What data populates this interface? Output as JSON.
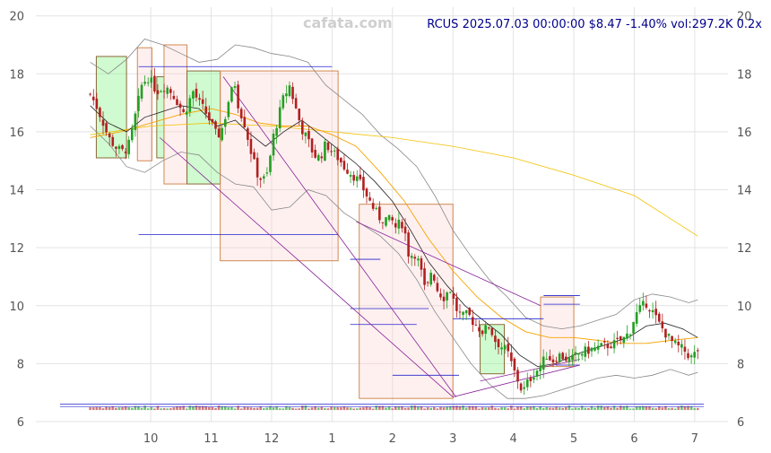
{
  "watermark": "cafata.com",
  "chart_data": {
    "type": "candlestick",
    "title": "RCUS 2025.07.03 00:00:00 $8.47 -1.40% vol:297.2K 0.2x",
    "ylim": [
      6,
      20.3
    ],
    "y_ticks": [
      6,
      8,
      10,
      12,
      14,
      16,
      18,
      20
    ],
    "x_ticks": [
      {
        "label": "10",
        "t": 1.0
      },
      {
        "label": "11",
        "t": 2.0
      },
      {
        "label": "12",
        "t": 3.0
      },
      {
        "label": "1",
        "t": 4.0
      },
      {
        "label": "2",
        "t": 5.0
      },
      {
        "label": "3",
        "t": 6.0
      },
      {
        "label": "4",
        "t": 7.0
      },
      {
        "label": "5",
        "t": 8.0
      },
      {
        "label": "6",
        "t": 9.0
      },
      {
        "label": "7",
        "t": 10.0
      }
    ],
    "xlim": [
      -0.9,
      10.55
    ],
    "close_path": [
      [
        0.0,
        17.3
      ],
      [
        0.1,
        16.9
      ],
      [
        0.2,
        16.4
      ],
      [
        0.3,
        15.8
      ],
      [
        0.45,
        15.4
      ],
      [
        0.55,
        15.3
      ],
      [
        0.65,
        15.6
      ],
      [
        0.75,
        16.6
      ],
      [
        0.85,
        17.6
      ],
      [
        0.95,
        17.9
      ],
      [
        1.1,
        17.4
      ],
      [
        1.25,
        17.6
      ],
      [
        1.4,
        17.2
      ],
      [
        1.55,
        16.6
      ],
      [
        1.7,
        17.4
      ],
      [
        1.8,
        17.0
      ],
      [
        1.9,
        16.7
      ],
      [
        2.0,
        16.3
      ],
      [
        2.1,
        15.8
      ],
      [
        2.2,
        16.2
      ],
      [
        2.3,
        17.2
      ],
      [
        2.4,
        17.7
      ],
      [
        2.45,
        16.9
      ],
      [
        2.55,
        16.3
      ],
      [
        2.65,
        15.4
      ],
      [
        2.75,
        14.6
      ],
      [
        2.85,
        14.3
      ],
      [
        2.95,
        14.6
      ],
      [
        3.0,
        15.6
      ],
      [
        3.1,
        16.4
      ],
      [
        3.2,
        17.2
      ],
      [
        3.3,
        17.6
      ],
      [
        3.4,
        16.8
      ],
      [
        3.5,
        16.1
      ],
      [
        3.6,
        15.7
      ],
      [
        3.7,
        15.2
      ],
      [
        3.8,
        15.1
      ],
      [
        3.9,
        15.6
      ],
      [
        4.0,
        15.3
      ],
      [
        4.1,
        15.1
      ],
      [
        4.2,
        14.8
      ],
      [
        4.3,
        14.6
      ],
      [
        4.4,
        14.4
      ],
      [
        4.5,
        14.1
      ],
      [
        4.6,
        13.7
      ],
      [
        4.7,
        13.3
      ],
      [
        4.8,
        13.0
      ],
      [
        4.9,
        13.0
      ],
      [
        5.0,
        12.9
      ],
      [
        5.05,
        12.7
      ],
      [
        5.15,
        12.9
      ],
      [
        5.22,
        12.4
      ],
      [
        5.28,
        11.6
      ],
      [
        5.35,
        11.9
      ],
      [
        5.45,
        11.4
      ],
      [
        5.55,
        10.4
      ],
      [
        5.65,
        11.3
      ],
      [
        5.75,
        10.5
      ],
      [
        5.85,
        10.3
      ],
      [
        5.95,
        10.6
      ],
      [
        6.05,
        9.9
      ],
      [
        6.15,
        9.6
      ],
      [
        6.25,
        9.7
      ],
      [
        6.35,
        9.4
      ],
      [
        6.5,
        9.1
      ],
      [
        6.6,
        9.3
      ],
      [
        6.7,
        8.8
      ],
      [
        6.8,
        8.6
      ],
      [
        6.9,
        8.4
      ],
      [
        7.0,
        7.8
      ],
      [
        7.1,
        7.3
      ],
      [
        7.15,
        7.0
      ],
      [
        7.25,
        7.4
      ],
      [
        7.35,
        7.7
      ],
      [
        7.45,
        7.9
      ],
      [
        7.55,
        8.3
      ],
      [
        7.65,
        8.1
      ],
      [
        7.75,
        8.3
      ],
      [
        7.85,
        8.2
      ],
      [
        7.95,
        8.1
      ],
      [
        8.05,
        8.3
      ],
      [
        8.15,
        8.4
      ],
      [
        8.3,
        8.5
      ],
      [
        8.5,
        8.6
      ],
      [
        8.7,
        8.7
      ],
      [
        8.85,
        8.9
      ],
      [
        8.95,
        9.2
      ],
      [
        9.0,
        9.6
      ],
      [
        9.1,
        9.9
      ],
      [
        9.2,
        10.1
      ],
      [
        9.3,
        9.8
      ],
      [
        9.4,
        9.4
      ],
      [
        9.5,
        9.1
      ],
      [
        9.6,
        8.8
      ],
      [
        9.7,
        8.6
      ],
      [
        9.8,
        8.5
      ],
      [
        9.9,
        8.3
      ],
      [
        9.95,
        8.2
      ],
      [
        10.05,
        8.47
      ]
    ],
    "boxes": [
      {
        "x0": 0.1,
        "x1": 0.6,
        "y0": 15.1,
        "y1": 18.6,
        "kind": "up"
      },
      {
        "x0": 0.78,
        "x1": 1.02,
        "y0": 15.0,
        "y1": 18.9,
        "kind": "down"
      },
      {
        "x0": 1.1,
        "x1": 1.22,
        "y0": 15.1,
        "y1": 17.9,
        "kind": "up"
      },
      {
        "x0": 1.22,
        "x1": 1.6,
        "y0": 14.2,
        "y1": 19.0,
        "kind": "down"
      },
      {
        "x0": 1.6,
        "x1": 2.15,
        "y0": 14.2,
        "y1": 18.1,
        "kind": "up"
      },
      {
        "x0": 2.15,
        "x1": 4.1,
        "y0": 11.55,
        "y1": 18.1,
        "kind": "down"
      },
      {
        "x0": 4.45,
        "x1": 6.0,
        "y0": 6.8,
        "y1": 13.5,
        "kind": "down"
      },
      {
        "x0": 6.45,
        "x1": 6.85,
        "y0": 7.65,
        "y1": 9.35,
        "kind": "up"
      },
      {
        "x0": 7.45,
        "x1": 8.0,
        "y0": 7.9,
        "y1": 10.3,
        "kind": "down"
      }
    ],
    "hlines": [
      {
        "x0": 0.8,
        "x1": 4.0,
        "y": 18.25
      },
      {
        "x0": 0.8,
        "x1": 4.1,
        "y": 12.45
      },
      {
        "x0": 4.3,
        "x1": 4.8,
        "y": 11.6
      },
      {
        "x0": 4.3,
        "x1": 5.6,
        "y": 9.9
      },
      {
        "x0": 4.3,
        "x1": 5.4,
        "y": 9.35
      },
      {
        "x0": 5.0,
        "x1": 6.1,
        "y": 7.6
      },
      {
        "x0": 6.0,
        "x1": 7.5,
        "y": 9.55
      },
      {
        "x0": 7.5,
        "x1": 8.1,
        "y": 10.35
      },
      {
        "x0": 7.5,
        "x1": 8.1,
        "y": 10.05
      },
      {
        "x0": 7.7,
        "x1": 8.1,
        "y": 7.95
      }
    ],
    "trend_lines": [
      {
        "x0": 2.2,
        "y0": 17.9,
        "x1": 6.05,
        "y1": 6.85
      },
      {
        "x0": 1.15,
        "y0": 15.8,
        "x1": 6.0,
        "y1": 6.85
      },
      {
        "x0": 4.4,
        "y0": 12.9,
        "x1": 7.45,
        "y1": 10.0
      },
      {
        "x0": 6.0,
        "y0": 6.85,
        "x1": 8.1,
        "y1": 7.95
      },
      {
        "x0": 6.45,
        "y0": 7.4,
        "x1": 8.1,
        "y1": 8.15
      }
    ],
    "ma_short": [
      [
        0.0,
        16.9
      ],
      [
        0.3,
        16.3
      ],
      [
        0.6,
        16.0
      ],
      [
        0.9,
        16.5
      ],
      [
        1.2,
        16.7
      ],
      [
        1.5,
        16.9
      ],
      [
        1.8,
        16.8
      ],
      [
        2.1,
        16.2
      ],
      [
        2.4,
        16.4
      ],
      [
        2.6,
        16.0
      ],
      [
        2.9,
        15.5
      ],
      [
        3.2,
        16.0
      ],
      [
        3.5,
        16.4
      ],
      [
        3.8,
        15.9
      ],
      [
        4.1,
        15.4
      ],
      [
        4.4,
        14.9
      ],
      [
        4.7,
        14.3
      ],
      [
        5.0,
        13.6
      ],
      [
        5.3,
        12.6
      ],
      [
        5.6,
        11.5
      ],
      [
        5.9,
        10.7
      ],
      [
        6.2,
        10.0
      ],
      [
        6.5,
        9.5
      ],
      [
        6.8,
        9.0
      ],
      [
        7.1,
        8.3
      ],
      [
        7.4,
        7.9
      ],
      [
        7.7,
        8.0
      ],
      [
        8.0,
        8.3
      ],
      [
        8.3,
        8.5
      ],
      [
        8.6,
        8.7
      ],
      [
        8.9,
        8.9
      ],
      [
        9.2,
        9.3
      ],
      [
        9.5,
        9.4
      ],
      [
        9.8,
        9.2
      ],
      [
        10.05,
        8.9
      ]
    ],
    "ma_long": [
      [
        0.0,
        15.8
      ],
      [
        0.5,
        16.0
      ],
      [
        1.0,
        16.3
      ],
      [
        1.5,
        16.6
      ],
      [
        2.0,
        16.8
      ],
      [
        2.4,
        16.6
      ],
      [
        2.8,
        16.3
      ],
      [
        3.2,
        16.2
      ],
      [
        3.6,
        16.2
      ],
      [
        4.0,
        15.9
      ],
      [
        4.4,
        15.5
      ],
      [
        4.8,
        14.6
      ],
      [
        5.2,
        13.6
      ],
      [
        5.6,
        12.3
      ],
      [
        6.0,
        11.2
      ],
      [
        6.4,
        10.3
      ],
      [
        6.8,
        9.6
      ],
      [
        7.2,
        9.1
      ],
      [
        7.6,
        8.9
      ],
      [
        8.0,
        8.9
      ],
      [
        8.4,
        8.8
      ],
      [
        8.8,
        8.7
      ],
      [
        9.2,
        8.7
      ],
      [
        9.6,
        8.8
      ],
      [
        10.05,
        8.9
      ]
    ],
    "ma_200": [
      [
        0.0,
        15.9
      ],
      [
        1.0,
        16.2
      ],
      [
        2.0,
        16.3
      ],
      [
        3.0,
        16.2
      ],
      [
        4.0,
        16.0
      ],
      [
        5.0,
        15.8
      ],
      [
        6.0,
        15.5
      ],
      [
        7.0,
        15.1
      ],
      [
        8.0,
        14.5
      ],
      [
        9.0,
        13.8
      ],
      [
        10.05,
        12.4
      ]
    ],
    "bb_upper": [
      [
        0.0,
        18.4
      ],
      [
        0.3,
        18.0
      ],
      [
        0.6,
        18.5
      ],
      [
        0.9,
        19.2
      ],
      [
        1.2,
        19.0
      ],
      [
        1.5,
        18.7
      ],
      [
        1.8,
        18.4
      ],
      [
        2.1,
        18.5
      ],
      [
        2.4,
        19.0
      ],
      [
        2.7,
        18.9
      ],
      [
        3.0,
        18.7
      ],
      [
        3.3,
        18.6
      ],
      [
        3.6,
        18.4
      ],
      [
        3.9,
        17.6
      ],
      [
        4.2,
        17.1
      ],
      [
        4.5,
        16.6
      ],
      [
        4.8,
        15.9
      ],
      [
        5.1,
        15.4
      ],
      [
        5.4,
        14.8
      ],
      [
        5.7,
        13.8
      ],
      [
        6.0,
        12.6
      ],
      [
        6.3,
        11.7
      ],
      [
        6.6,
        10.9
      ],
      [
        6.9,
        10.3
      ],
      [
        7.2,
        9.6
      ],
      [
        7.5,
        9.3
      ],
      [
        7.8,
        9.2
      ],
      [
        8.1,
        9.3
      ],
      [
        8.4,
        9.5
      ],
      [
        8.7,
        9.7
      ],
      [
        9.0,
        10.2
      ],
      [
        9.3,
        10.4
      ],
      [
        9.6,
        10.3
      ],
      [
        9.9,
        10.1
      ],
      [
        10.05,
        10.2
      ]
    ],
    "bb_lower": [
      [
        0.0,
        16.2
      ],
      [
        0.3,
        15.6
      ],
      [
        0.6,
        14.8
      ],
      [
        0.9,
        14.6
      ],
      [
        1.2,
        15.0
      ],
      [
        1.5,
        15.3
      ],
      [
        1.8,
        15.2
      ],
      [
        2.1,
        14.6
      ],
      [
        2.4,
        14.2
      ],
      [
        2.7,
        14.1
      ],
      [
        3.0,
        13.3
      ],
      [
        3.3,
        13.4
      ],
      [
        3.6,
        14.0
      ],
      [
        3.9,
        13.8
      ],
      [
        4.2,
        13.2
      ],
      [
        4.5,
        12.8
      ],
      [
        4.8,
        12.4
      ],
      [
        5.1,
        11.8
      ],
      [
        5.4,
        10.9
      ],
      [
        5.7,
        9.8
      ],
      [
        6.0,
        8.9
      ],
      [
        6.3,
        8.0
      ],
      [
        6.6,
        7.3
      ],
      [
        6.9,
        6.8
      ],
      [
        7.2,
        6.8
      ],
      [
        7.5,
        6.9
      ],
      [
        7.8,
        7.1
      ],
      [
        8.1,
        7.3
      ],
      [
        8.4,
        7.5
      ],
      [
        8.7,
        7.6
      ],
      [
        9.0,
        7.5
      ],
      [
        9.3,
        7.6
      ],
      [
        9.6,
        7.8
      ],
      [
        9.9,
        7.6
      ],
      [
        10.05,
        7.7
      ]
    ]
  }
}
